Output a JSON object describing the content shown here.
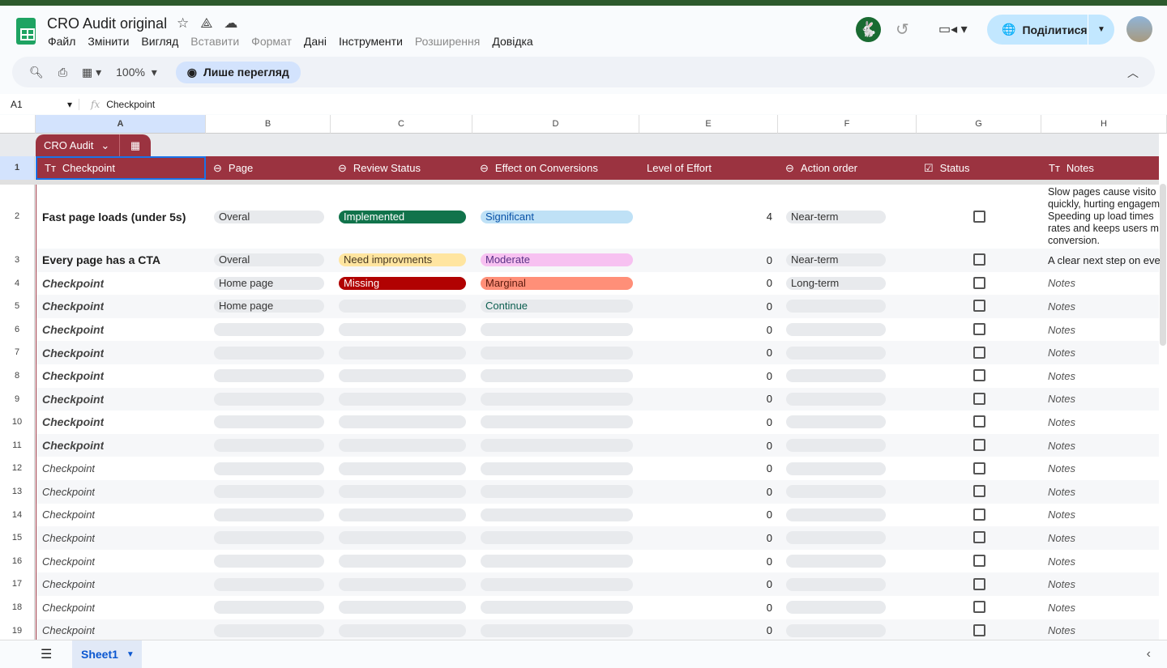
{
  "doc": {
    "title": "CRO Audit original"
  },
  "menu": [
    "Файл",
    "Змінити",
    "Вигляд",
    "Вставити",
    "Формат",
    "Дані",
    "Інструменти",
    "Розширення",
    "Довідка"
  ],
  "menu_disabled": [
    3,
    4,
    7
  ],
  "share": {
    "label": "Поділитися"
  },
  "toolbar": {
    "zoom": "100%",
    "view_only": "Лише перегляд"
  },
  "formula": {
    "cell": "A1",
    "value": "Checkpoint"
  },
  "columns": [
    "A",
    "B",
    "C",
    "D",
    "E",
    "F",
    "G",
    "H"
  ],
  "table": {
    "name": "CRO Audit",
    "headers": [
      "Checkpoint",
      "Page",
      "Review Status",
      "Effect on Conversions",
      "Level of Effort",
      "Action order",
      "Status",
      "Notes"
    ]
  },
  "chip_colors": {
    "Implemented": {
      "bg": "#11734b",
      "fg": "#ffffff"
    },
    "Need improvments": {
      "bg": "#ffe5a0",
      "fg": "#473821"
    },
    "Missing": {
      "bg": "#b10202",
      "fg": "#ffffff"
    },
    "Significant": {
      "bg": "#bfe1f6",
      "fg": "#0a53a8"
    },
    "Moderate": {
      "bg": "#f7c1f1",
      "fg": "#5a3286"
    },
    "Marginal": {
      "bg": "#ff8f78",
      "fg": "#5b1a0e"
    },
    "Continue": {
      "bg": "#e8eaed",
      "fg": "#0b5e4f"
    }
  },
  "rows": [
    {
      "n": "2",
      "checkpoint": "Fast page loads (under 5s)",
      "style": "bold",
      "page": "Overal",
      "review": "Implemented",
      "effect": "Significant",
      "effort": "4",
      "action": "Near-term",
      "notes": "Slow pages cause visitors to leave quickly, hurting engagement. Speeding up load times reduces bounce rates and keeps users moving toward conversion.",
      "notes_lines": [
        "Slow pages cause visito",
        "quickly, hurting engagem",
        "Speeding up load times",
        "rates and keeps users m",
        "conversion."
      ]
    },
    {
      "n": "3",
      "checkpoint": "Every page has a CTA",
      "style": "bold",
      "page": "Overal",
      "review": "Need improvments",
      "effect": "Moderate",
      "effort": "0",
      "action": "Near-term",
      "notes": "A clear next step on every"
    },
    {
      "n": "4",
      "checkpoint": "Checkpoint",
      "style": "bolditalic",
      "page": "Home page",
      "review": "Missing",
      "effect": "Marginal",
      "effort": "0",
      "action": "Long-term",
      "notes": "Notes"
    },
    {
      "n": "5",
      "checkpoint": "Checkpoint",
      "style": "bolditalic",
      "page": "Home page",
      "review": "",
      "effect": "Continue",
      "effort": "0",
      "action": "",
      "notes": "Notes"
    },
    {
      "n": "6",
      "checkpoint": "Checkpoint",
      "style": "bolditalic",
      "page": "",
      "review": "",
      "effect": "",
      "effort": "0",
      "action": "",
      "notes": "Notes"
    },
    {
      "n": "7",
      "checkpoint": "Checkpoint",
      "style": "bolditalic",
      "page": "",
      "review": "",
      "effect": "",
      "effort": "0",
      "action": "",
      "notes": "Notes"
    },
    {
      "n": "8",
      "checkpoint": "Checkpoint",
      "style": "bolditalic",
      "page": "",
      "review": "",
      "effect": "",
      "effort": "0",
      "action": "",
      "notes": "Notes"
    },
    {
      "n": "9",
      "checkpoint": "Checkpoint",
      "style": "bolditalic",
      "page": "",
      "review": "",
      "effect": "",
      "effort": "0",
      "action": "",
      "notes": "Notes"
    },
    {
      "n": "10",
      "checkpoint": "Checkpoint",
      "style": "bolditalic",
      "page": "",
      "review": "",
      "effect": "",
      "effort": "0",
      "action": "",
      "notes": "Notes"
    },
    {
      "n": "11",
      "checkpoint": "Checkpoint",
      "style": "bolditalic",
      "page": "",
      "review": "",
      "effect": "",
      "effort": "0",
      "action": "",
      "notes": "Notes"
    },
    {
      "n": "12",
      "checkpoint": "Checkpoint",
      "style": "italic",
      "page": "",
      "review": "",
      "effect": "",
      "effort": "0",
      "action": "",
      "notes": "Notes"
    },
    {
      "n": "13",
      "checkpoint": "Checkpoint",
      "style": "italic",
      "page": "",
      "review": "",
      "effect": "",
      "effort": "0",
      "action": "",
      "notes": "Notes"
    },
    {
      "n": "14",
      "checkpoint": "Checkpoint",
      "style": "italic",
      "page": "",
      "review": "",
      "effect": "",
      "effort": "0",
      "action": "",
      "notes": "Notes"
    },
    {
      "n": "15",
      "checkpoint": "Checkpoint",
      "style": "italic",
      "page": "",
      "review": "",
      "effect": "",
      "effort": "0",
      "action": "",
      "notes": "Notes"
    },
    {
      "n": "16",
      "checkpoint": "Checkpoint",
      "style": "italic",
      "page": "",
      "review": "",
      "effect": "",
      "effort": "0",
      "action": "",
      "notes": "Notes"
    },
    {
      "n": "17",
      "checkpoint": "Checkpoint",
      "style": "italic",
      "page": "",
      "review": "",
      "effect": "",
      "effort": "0",
      "action": "",
      "notes": "Notes"
    },
    {
      "n": "18",
      "checkpoint": "Checkpoint",
      "style": "italic",
      "page": "",
      "review": "",
      "effect": "",
      "effort": "0",
      "action": "",
      "notes": "Notes"
    },
    {
      "n": "19",
      "checkpoint": "Checkpoint",
      "style": "italic",
      "page": "",
      "review": "",
      "effect": "",
      "effort": "0",
      "action": "",
      "notes": "Notes"
    }
  ],
  "sheets": [
    {
      "name": "Sheet1"
    }
  ]
}
